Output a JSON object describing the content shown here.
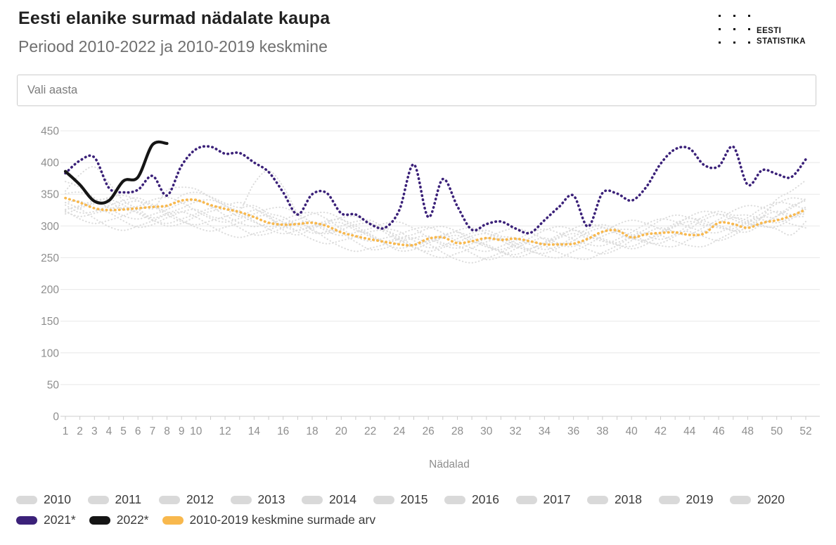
{
  "header": {
    "title": "Eesti elanike surmad nädalate kaupa",
    "subtitle": "Periood 2010-2022 ja 2010-2019 keskmine",
    "logo_line1": "EESTI",
    "logo_line2": "STATISTIKA"
  },
  "filter": {
    "placeholder": "Vali aasta"
  },
  "chart_data": {
    "type": "line",
    "xlabel": "Nädalad",
    "x_range": [
      1,
      52
    ],
    "x_ticks_labeled": [
      1,
      2,
      3,
      4,
      5,
      6,
      7,
      8,
      9,
      10,
      12,
      14,
      16,
      18,
      20,
      22,
      24,
      26,
      28,
      30,
      32,
      34,
      36,
      38,
      40,
      42,
      44,
      46,
      48,
      50,
      52
    ],
    "ylim": [
      0,
      450
    ],
    "y_ticks": [
      0,
      50,
      100,
      150,
      200,
      250,
      300,
      350,
      400,
      450
    ],
    "grid": "horizontal",
    "series": [
      {
        "name": "2010",
        "color": "#dcdcdc",
        "style": "dotted",
        "width": 2,
        "values": [
          351,
          353,
          343,
          328,
          316,
          311,
          318,
          326,
          336,
          340,
          331,
          317,
          305,
          299,
          304,
          310,
          318,
          321,
          311,
          296,
          283,
          276,
          281,
          287,
          295,
          298,
          289,
          276,
          265,
          260,
          268,
          277,
          289,
          295,
          289,
          279,
          271,
          269,
          279,
          290,
          303,
          311,
          307,
          298,
          291,
          290,
          301,
          313,
          328,
          337,
          334,
          326
        ]
      },
      {
        "name": "2011",
        "color": "#dcdcdc",
        "style": "dotted",
        "width": 2,
        "values": [
          324,
          311,
          304,
          309,
          316,
          326,
          330,
          322,
          309,
          298,
          292,
          298,
          305,
          314,
          316,
          306,
          291,
          279,
          272,
          277,
          283,
          291,
          293,
          283,
          268,
          256,
          250,
          257,
          265,
          275,
          280,
          273,
          262,
          253,
          250,
          260,
          271,
          284,
          291,
          286,
          276,
          269,
          268,
          279,
          291,
          305,
          313,
          309,
          301,
          295,
          286,
          307
        ]
      },
      {
        "name": "2012",
        "color": "#dcdcdc",
        "style": "dotted",
        "width": 2,
        "values": [
          326,
          331,
          337,
          345,
          348,
          340,
          327,
          356,
          361,
          358,
          345,
          334,
          337,
          328,
          313,
          300,
          293,
          299,
          305,
          313,
          315,
          305,
          290,
          277,
          270,
          276,
          283,
          293,
          297,
          289,
          277,
          267,
          264,
          273,
          283,
          296,
          303,
          298,
          288,
          280,
          278,
          289,
          301,
          315,
          323,
          319,
          310,
          303,
          303,
          315,
          328,
          343
        ]
      },
      {
        "name": "2013",
        "color": "#dcdcdc",
        "style": "dotted",
        "width": 2,
        "values": [
          326,
          332,
          340,
          342,
          333,
          320,
          309,
          304,
          311,
          319,
          328,
          331,
          322,
          308,
          295,
          288,
          293,
          300,
          308,
          310,
          300,
          285,
          272,
          265,
          270,
          277,
          286,
          290,
          282,
          269,
          259,
          255,
          264,
          274,
          286,
          293,
          288,
          278,
          270,
          268,
          278,
          290,
          304,
          312,
          308,
          299,
          292,
          291,
          303,
          316,
          331,
          340
        ]
      },
      {
        "name": "2014",
        "color": "#dcdcdc",
        "style": "dotted",
        "width": 2,
        "values": [
          337,
          327,
          312,
          299,
          293,
          300,
          308,
          318,
          322,
          314,
          300,
          288,
          282,
          288,
          294,
          302,
          304,
          295,
          280,
          267,
          260,
          265,
          271,
          279,
          281,
          272,
          258,
          247,
          242,
          249,
          258,
          269,
          275,
          269,
          258,
          250,
          248,
          258,
          269,
          282,
          289,
          285,
          276,
          269,
          268,
          279,
          291,
          305,
          314,
          311,
          303,
          297
        ]
      },
      {
        "name": "2015",
        "color": "#dcdcdc",
        "style": "dotted",
        "width": 2,
        "values": [
          370,
          361,
          344,
          329,
          329,
          331,
          341,
          345,
          337,
          324,
          312,
          306,
          312,
          319,
          327,
          329,
          319,
          305,
          292,
          285,
          290,
          296,
          304,
          306,
          296,
          282,
          270,
          265,
          272,
          280,
          291,
          296,
          290,
          279,
          270,
          268,
          278,
          289,
          302,
          309,
          304,
          295,
          288,
          287,
          298,
          310,
          324,
          332,
          329,
          321,
          315,
          315
        ]
      },
      {
        "name": "2016",
        "color": "#dcdcdc",
        "style": "dotted",
        "width": 2,
        "values": [
          322,
          315,
          320,
          326,
          335,
          339,
          331,
          318,
          307,
          302,
          308,
          315,
          324,
          367,
          387,
          362,
          319,
          293,
          288,
          294,
          302,
          304,
          294,
          279,
          266,
          260,
          266,
          274,
          284,
          288,
          281,
          269,
          260,
          257,
          266,
          277,
          290,
          297,
          292,
          282,
          274,
          273,
          284,
          296,
          310,
          318,
          314,
          305,
          299,
          299,
          311,
          324
        ]
      },
      {
        "name": "2017",
        "color": "#dcdcdc",
        "style": "dotted",
        "width": 2,
        "values": [
          355,
          381,
          393,
          368,
          340,
          327,
          313,
          320,
          328,
          338,
          341,
          332,
          318,
          306,
          299,
          304,
          310,
          319,
          321,
          311,
          296,
          283,
          276,
          281,
          287,
          296,
          299,
          291,
          278,
          267,
          263,
          271,
          281,
          293,
          299,
          294,
          284,
          276,
          274,
          284,
          295,
          309,
          317,
          313,
          304,
          297,
          296,
          307,
          320,
          335,
          344,
          341
        ]
      },
      {
        "name": "2018",
        "color": "#dcdcdc",
        "style": "dotted",
        "width": 2,
        "values": [
          333,
          321,
          323,
          332,
          340,
          344,
          334,
          330,
          348,
          353,
          346,
          336,
          329,
          332,
          320,
          314,
          300,
          289,
          291,
          300,
          307,
          309,
          297,
          291,
          277,
          266,
          269,
          280,
          289,
          293,
          284,
          281,
          271,
          263,
          269,
          283,
          295,
          302,
          295,
          294,
          285,
          279,
          287,
          302,
          315,
          323,
          317,
          317,
          310,
          305,
          314,
          330
        ]
      },
      {
        "name": "2019",
        "color": "#dcdcdc",
        "style": "dotted",
        "width": 2,
        "values": [
          337,
          339,
          327,
          321,
          308,
          298,
          302,
          313,
          322,
          326,
          315,
          310,
          297,
          286,
          288,
          297,
          304,
          307,
          295,
          289,
          275,
          263,
          265,
          274,
          281,
          284,
          273,
          269,
          257,
          247,
          252,
          264,
          275,
          281,
          273,
          272,
          263,
          256,
          263,
          277,
          289,
          297,
          291,
          291,
          283,
          277,
          285,
          300,
          314,
          323,
          318,
          319
        ]
      },
      {
        "name": "2020",
        "color": "#dcdcdc",
        "style": "dotted",
        "width": 2,
        "values": [
          319,
          328,
          335,
          337,
          326,
          322,
          310,
          300,
          304,
          315,
          323,
          326,
          315,
          325,
          316,
          294,
          286,
          296,
          303,
          305,
          293,
          287,
          273,
          261,
          263,
          273,
          281,
          285,
          275,
          271,
          260,
          251,
          257,
          270,
          281,
          288,
          281,
          280,
          271,
          264,
          271,
          286,
          299,
          307,
          301,
          301,
          293,
          297,
          314,
          342,
          355,
          372
        ]
      },
      {
        "name": "2010-2019 keskmine surmade arv",
        "color": "#f8b84d",
        "style": "dotted",
        "width": 3.6,
        "values": [
          344,
          337,
          328,
          325,
          326,
          328,
          330,
          332,
          340,
          341,
          333,
          327,
          322,
          314,
          305,
          302,
          303,
          305,
          300,
          290,
          284,
          279,
          275,
          271,
          270,
          280,
          282,
          273,
          276,
          281,
          278,
          280,
          276,
          271,
          271,
          272,
          280,
          291,
          293,
          282,
          287,
          289,
          290,
          286,
          288,
          305,
          303,
          297,
          305,
          309,
          316,
          326
        ]
      },
      {
        "name": "2021*",
        "color": "#3b2179",
        "style": "dotted",
        "width": 3.6,
        "values": [
          383,
          403,
          408,
          360,
          353,
          357,
          379,
          348,
          395,
          421,
          425,
          414,
          415,
          400,
          385,
          353,
          318,
          350,
          352,
          320,
          318,
          303,
          297,
          325,
          397,
          314,
          374,
          331,
          294,
          303,
          307,
          296,
          289,
          309,
          330,
          348,
          299,
          352,
          351,
          340,
          361,
          398,
          421,
          422,
          396,
          394,
          425,
          365,
          388,
          382,
          377,
          405
        ]
      },
      {
        "name": "2022*",
        "color": "#151515",
        "style": "solid",
        "width": 4.2,
        "values": [
          386,
          365,
          339,
          340,
          371,
          377,
          428,
          430
        ]
      }
    ]
  },
  "legend": {
    "rows": [
      [
        {
          "label": "2010",
          "color": "#d9d9d9"
        },
        {
          "label": "2011",
          "color": "#d9d9d9"
        },
        {
          "label": "2012",
          "color": "#d9d9d9"
        },
        {
          "label": "2013",
          "color": "#d9d9d9"
        },
        {
          "label": "2014",
          "color": "#d9d9d9"
        },
        {
          "label": "2015",
          "color": "#d9d9d9"
        },
        {
          "label": "2016",
          "color": "#d9d9d9"
        },
        {
          "label": "2017",
          "color": "#d9d9d9"
        },
        {
          "label": "2018",
          "color": "#d9d9d9"
        },
        {
          "label": "2019",
          "color": "#d9d9d9"
        },
        {
          "label": "2020",
          "color": "#d9d9d9"
        }
      ],
      [
        {
          "label": "2021*",
          "color": "#3b2179"
        },
        {
          "label": "2022*",
          "color": "#151515"
        },
        {
          "label": "2010-2019 keskmine surmade arv",
          "color": "#f8b84d"
        }
      ]
    ]
  }
}
